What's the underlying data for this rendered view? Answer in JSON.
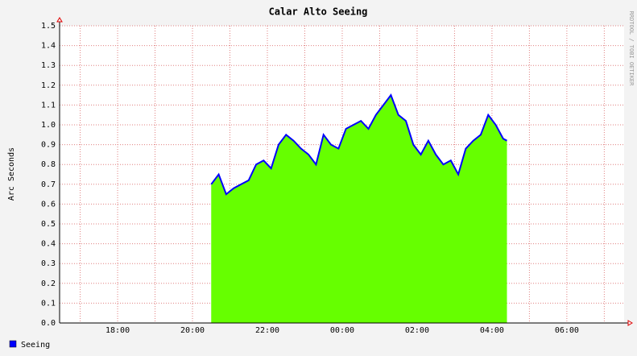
{
  "chart_data": {
    "type": "area",
    "title": "Calar Alto Seeing",
    "y_label": "Arc Seconds",
    "watermark": "RRDTOOL / TOBI OETIKER",
    "x": [
      20.5,
      20.7,
      20.9,
      21.1,
      21.3,
      21.5,
      21.7,
      21.9,
      22.1,
      22.3,
      22.5,
      22.7,
      22.9,
      23.1,
      23.3,
      23.5,
      23.7,
      23.9,
      24.1,
      24.3,
      24.5,
      24.7,
      24.9,
      25.1,
      25.3,
      25.5,
      25.7,
      25.9,
      26.1,
      26.3,
      26.5,
      26.7,
      26.9,
      27.1,
      27.3,
      27.5,
      27.7,
      27.9,
      28.1,
      28.3,
      28.4
    ],
    "series": [
      {
        "name": "Seeing",
        "color": "#0000ff",
        "fill": "#66ff00",
        "values": [
          0.7,
          0.75,
          0.65,
          0.68,
          0.7,
          0.72,
          0.8,
          0.82,
          0.78,
          0.9,
          0.95,
          0.92,
          0.88,
          0.85,
          0.8,
          0.95,
          0.9,
          0.88,
          0.98,
          1.0,
          1.02,
          0.98,
          1.05,
          1.1,
          1.15,
          1.05,
          1.02,
          0.9,
          0.85,
          0.92,
          0.85,
          0.8,
          0.82,
          0.75,
          0.88,
          0.92,
          0.95,
          1.05,
          1.0,
          0.93,
          0.92
        ]
      }
    ],
    "xlim": [
      16.45,
      31.53
    ],
    "xticks": [
      {
        "value": 18,
        "label": "18:00"
      },
      {
        "value": 20,
        "label": "20:00"
      },
      {
        "value": 22,
        "label": "22:00"
      },
      {
        "value": 24,
        "label": "00:00"
      },
      {
        "value": 26,
        "label": "02:00"
      },
      {
        "value": 28,
        "label": "04:00"
      },
      {
        "value": 30,
        "label": "06:00"
      }
    ],
    "xminor": [
      17,
      19,
      21,
      23,
      25,
      27,
      29,
      31
    ],
    "ylim": [
      0,
      1.5
    ],
    "yticks": [
      {
        "value": 0,
        "label": "0.0"
      },
      0.1,
      0.2,
      0.3,
      0.4,
      0.5,
      0.6,
      0.7,
      0.8,
      0.9,
      {
        "value": 1,
        "label": "1.0"
      },
      1.1,
      1.2,
      1.3,
      1.4,
      1.5
    ],
    "grid": true
  }
}
